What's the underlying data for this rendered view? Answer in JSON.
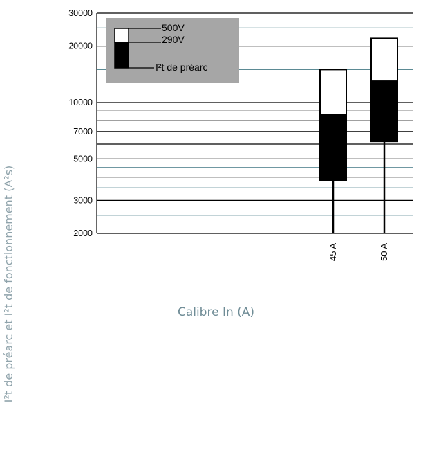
{
  "chart_data": {
    "type": "bar",
    "chart_kind": "floating stacked range bars (log scale)",
    "xlabel": "Calibre In (A)",
    "ylabel": "I²t de préarc et I²t de fonctionnement (A²s)",
    "y_scale": "log",
    "ylim": [
      2000,
      30000
    ],
    "y_ticks": [
      2000,
      3000,
      5000,
      7000,
      10000,
      20000,
      30000
    ],
    "y_tick_labels": [
      "2000",
      "3000",
      "5000",
      "7000",
      "10000",
      "20000",
      "30000"
    ],
    "gridlines_black": [
      2000,
      3000,
      4000,
      5000,
      6000,
      7000,
      8000,
      9000,
      10000,
      20000,
      30000
    ],
    "gridlines_teal": [
      2500,
      3500,
      4500,
      15000,
      25000
    ],
    "categories": [
      "45 A",
      "50 A"
    ],
    "series": [
      {
        "name": "I²t de préarc",
        "color": "#000000",
        "low": [
          3850,
          6200
        ],
        "high": [
          8600,
          13000
        ]
      },
      {
        "name": "290V",
        "color": "#000000",
        "low": [
          8600,
          13000
        ],
        "high": [
          8600,
          13000
        ]
      },
      {
        "name": "500V",
        "color": "#ffffff",
        "low": [
          8600,
          13000
        ],
        "high": [
          15000,
          22000
        ]
      }
    ],
    "legend": {
      "placement": "top-left",
      "background": "#a6a6a6",
      "entries": [
        "500V",
        "290V",
        "I²t de préarc"
      ]
    },
    "colors": {
      "teal_grid": "#5b8a94",
      "axis": "#000000",
      "title_color": "#8fa3ab"
    }
  }
}
